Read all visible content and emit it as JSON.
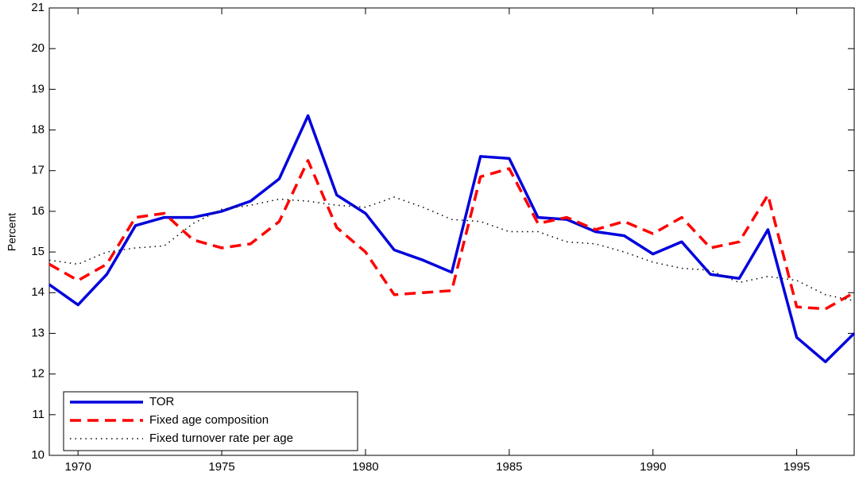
{
  "chart_data": {
    "type": "line",
    "ylabel": "Percent",
    "x": [
      1969,
      1970,
      1971,
      1972,
      1973,
      1974,
      1975,
      1976,
      1977,
      1978,
      1979,
      1980,
      1981,
      1982,
      1983,
      1984,
      1985,
      1986,
      1987,
      1988,
      1989,
      1990,
      1991,
      1992,
      1993,
      1994,
      1995,
      1996,
      1997
    ],
    "series": [
      {
        "name": "TOR",
        "color": "#0000dd",
        "style": "solid",
        "values": [
          14.2,
          13.7,
          14.45,
          15.65,
          15.85,
          15.85,
          16.0,
          16.25,
          16.8,
          18.35,
          16.4,
          15.95,
          15.05,
          14.8,
          14.5,
          17.35,
          17.3,
          15.85,
          15.8,
          15.5,
          15.4,
          14.95,
          15.25,
          14.45,
          14.35,
          15.55,
          12.9,
          12.3,
          13.0
        ]
      },
      {
        "name": "Fixed age composition",
        "color": "#ff0000",
        "style": "dashed",
        "values": [
          14.7,
          14.3,
          14.7,
          15.85,
          15.95,
          15.3,
          15.1,
          15.2,
          15.75,
          17.25,
          15.6,
          15.0,
          13.95,
          14.0,
          14.05,
          16.85,
          17.05,
          15.7,
          15.85,
          15.55,
          15.75,
          15.45,
          15.85,
          15.1,
          15.25,
          16.4,
          13.65,
          13.6,
          14.0
        ]
      },
      {
        "name": "Fixed turnover rate per age",
        "color": "#000000",
        "style": "dotted",
        "values": [
          14.8,
          14.7,
          15.0,
          15.1,
          15.15,
          15.7,
          16.05,
          16.15,
          16.3,
          16.25,
          16.15,
          16.1,
          16.35,
          16.1,
          15.8,
          15.75,
          15.5,
          15.5,
          15.25,
          15.2,
          15.0,
          14.75,
          14.6,
          14.55,
          14.25,
          14.4,
          14.3,
          13.95,
          13.8
        ]
      }
    ],
    "xlim": [
      1969,
      1997
    ],
    "xticks": [
      1970,
      1975,
      1980,
      1985,
      1990,
      1995
    ],
    "ylim": [
      10,
      21
    ],
    "yticks": [
      10,
      11,
      12,
      13,
      14,
      15,
      16,
      17,
      18,
      19,
      20,
      21
    ],
    "legend": "lower left",
    "grid": false
  }
}
